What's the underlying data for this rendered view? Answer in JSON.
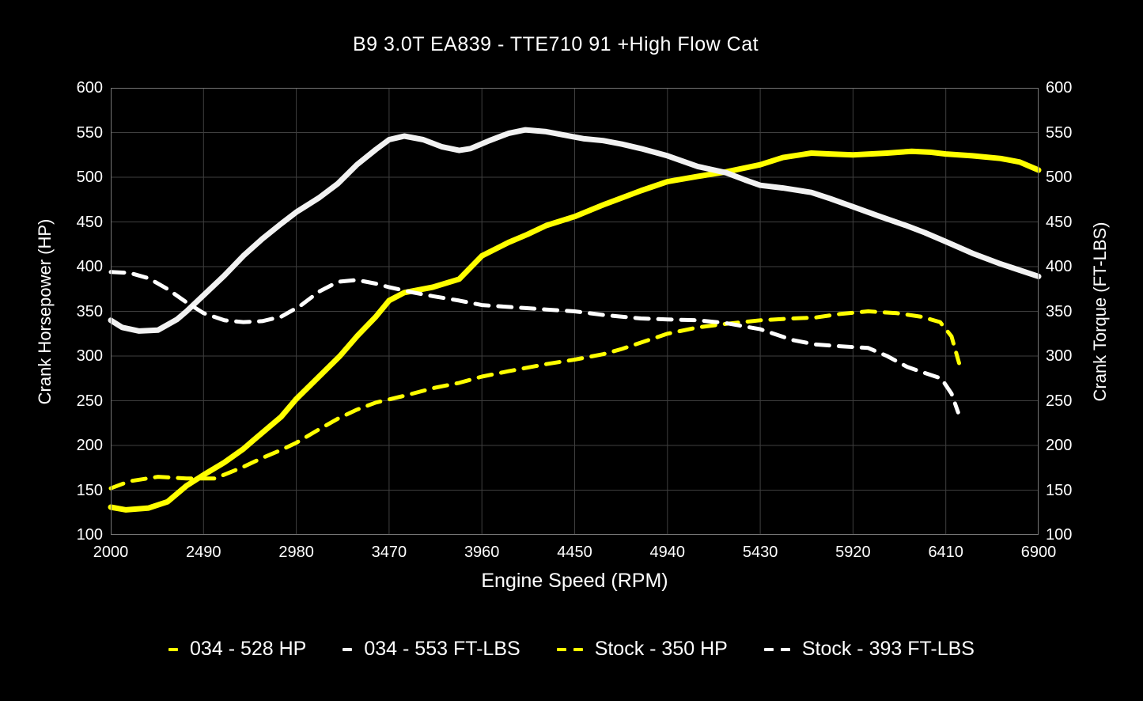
{
  "chart": {
    "title": "B9 3.0T EA839 - TTE710 91 +High Flow Cat",
    "x_axis_label": "Engine Speed (RPM)",
    "y_axis_left_label": "Crank Horsepower (HP)",
    "y_axis_right_label": "Crank Torque (FT-LBS)"
  },
  "chart_data": {
    "type": "line",
    "title": "B9 3.0T EA839 - TTE710 91 +High Flow Cat",
    "xlabel": "Engine Speed (RPM)",
    "ylabel_left": "Crank Horsepower (HP)",
    "ylabel_right": "Crank Torque (FT-LBS)",
    "xlim": [
      2000,
      6900
    ],
    "ylim": [
      100,
      600
    ],
    "x_ticks": [
      2000,
      2490,
      2980,
      3470,
      3960,
      4450,
      4940,
      5430,
      5920,
      6410,
      6900
    ],
    "y_ticks": [
      100,
      150,
      200,
      250,
      300,
      350,
      400,
      450,
      500,
      550,
      600
    ],
    "grid": true,
    "legend_position": "bottom",
    "colors": {
      "background": "#000000",
      "grid": "#3f3f3f",
      "spine": "#757575",
      "text": "#ffffff",
      "accent_yellow": "#ffff00",
      "accent_white": "#ffffff"
    },
    "series": [
      {
        "name": "034 - 528 HP",
        "key": "034-hp",
        "color": "#ffff00",
        "style": "solid",
        "width": 7,
        "points": [
          [
            2000,
            131
          ],
          [
            2080,
            128
          ],
          [
            2200,
            130
          ],
          [
            2300,
            137
          ],
          [
            2400,
            155
          ],
          [
            2490,
            167
          ],
          [
            2600,
            181
          ],
          [
            2700,
            196
          ],
          [
            2760,
            207
          ],
          [
            2900,
            232
          ],
          [
            2980,
            252
          ],
          [
            3100,
            277
          ],
          [
            3210,
            300
          ],
          [
            3300,
            322
          ],
          [
            3400,
            344
          ],
          [
            3470,
            362
          ],
          [
            3550,
            371
          ],
          [
            3700,
            377
          ],
          [
            3840,
            386
          ],
          [
            3960,
            412
          ],
          [
            4100,
            427
          ],
          [
            4200,
            436
          ],
          [
            4300,
            446
          ],
          [
            4450,
            456
          ],
          [
            4600,
            469
          ],
          [
            4800,
            485
          ],
          [
            4940,
            495
          ],
          [
            5100,
            501
          ],
          [
            5250,
            506
          ],
          [
            5430,
            514
          ],
          [
            5550,
            522
          ],
          [
            5700,
            527
          ],
          [
            5800,
            526
          ],
          [
            5920,
            525
          ],
          [
            6100,
            527
          ],
          [
            6230,
            529
          ],
          [
            6330,
            528
          ],
          [
            6410,
            526
          ],
          [
            6550,
            524
          ],
          [
            6700,
            521
          ],
          [
            6800,
            517
          ],
          [
            6900,
            508
          ]
        ]
      },
      {
        "name": "034 - 553 FT-LBS",
        "key": "034-tq",
        "color": "#f2f2f2",
        "style": "solid",
        "width": 7,
        "points": [
          [
            2000,
            340
          ],
          [
            2060,
            332
          ],
          [
            2150,
            328
          ],
          [
            2250,
            329
          ],
          [
            2350,
            341
          ],
          [
            2400,
            350
          ],
          [
            2490,
            368
          ],
          [
            2600,
            390
          ],
          [
            2700,
            412
          ],
          [
            2800,
            431
          ],
          [
            2900,
            448
          ],
          [
            2980,
            461
          ],
          [
            3100,
            477
          ],
          [
            3200,
            493
          ],
          [
            3300,
            514
          ],
          [
            3400,
            531
          ],
          [
            3470,
            542
          ],
          [
            3550,
            546
          ],
          [
            3650,
            542
          ],
          [
            3750,
            534
          ],
          [
            3840,
            530
          ],
          [
            3900,
            532
          ],
          [
            4000,
            541
          ],
          [
            4100,
            549
          ],
          [
            4190,
            553
          ],
          [
            4300,
            551
          ],
          [
            4400,
            547
          ],
          [
            4500,
            543
          ],
          [
            4600,
            541
          ],
          [
            4700,
            537
          ],
          [
            4800,
            532
          ],
          [
            4940,
            524
          ],
          [
            5100,
            512
          ],
          [
            5250,
            505
          ],
          [
            5350,
            497
          ],
          [
            5430,
            491
          ],
          [
            5550,
            488
          ],
          [
            5700,
            483
          ],
          [
            5800,
            476
          ],
          [
            5920,
            467
          ],
          [
            6050,
            457
          ],
          [
            6200,
            446
          ],
          [
            6300,
            438
          ],
          [
            6410,
            428
          ],
          [
            6550,
            415
          ],
          [
            6700,
            403
          ],
          [
            6800,
            396
          ],
          [
            6900,
            389
          ]
        ]
      },
      {
        "name": "Stock - 350 HP",
        "key": "stock-hp",
        "color": "#ffff00",
        "style": "dashed",
        "width": 5,
        "points": [
          [
            2000,
            152
          ],
          [
            2100,
            160
          ],
          [
            2250,
            165
          ],
          [
            2400,
            163
          ],
          [
            2550,
            163
          ],
          [
            2700,
            176
          ],
          [
            2800,
            186
          ],
          [
            2900,
            195
          ],
          [
            2980,
            203
          ],
          [
            3100,
            218
          ],
          [
            3200,
            230
          ],
          [
            3300,
            240
          ],
          [
            3400,
            248
          ],
          [
            3560,
            256
          ],
          [
            3700,
            264
          ],
          [
            3840,
            270
          ],
          [
            3960,
            277
          ],
          [
            4100,
            283
          ],
          [
            4300,
            291
          ],
          [
            4450,
            296
          ],
          [
            4600,
            302
          ],
          [
            4700,
            308
          ],
          [
            4800,
            315
          ],
          [
            4940,
            325
          ],
          [
            5100,
            332
          ],
          [
            5250,
            336
          ],
          [
            5430,
            340
          ],
          [
            5600,
            342
          ],
          [
            5720,
            343
          ],
          [
            5850,
            347
          ],
          [
            6000,
            350
          ],
          [
            6150,
            348
          ],
          [
            6280,
            344
          ],
          [
            6380,
            338
          ],
          [
            6440,
            322
          ],
          [
            6480,
            292
          ]
        ]
      },
      {
        "name": "Stock - 393 FT-LBS",
        "key": "stock-tq",
        "color": "#ffffff",
        "style": "dashed",
        "width": 5,
        "points": [
          [
            2000,
            394
          ],
          [
            2100,
            393
          ],
          [
            2200,
            387
          ],
          [
            2300,
            375
          ],
          [
            2400,
            360
          ],
          [
            2490,
            348
          ],
          [
            2600,
            340
          ],
          [
            2700,
            338
          ],
          [
            2800,
            339
          ],
          [
            2900,
            344
          ],
          [
            3000,
            356
          ],
          [
            3100,
            372
          ],
          [
            3200,
            383
          ],
          [
            3300,
            385
          ],
          [
            3400,
            381
          ],
          [
            3470,
            377
          ],
          [
            3600,
            371
          ],
          [
            3700,
            367
          ],
          [
            3840,
            362
          ],
          [
            3960,
            357
          ],
          [
            4100,
            355
          ],
          [
            4300,
            352
          ],
          [
            4450,
            350
          ],
          [
            4600,
            346
          ],
          [
            4800,
            342
          ],
          [
            4940,
            341
          ],
          [
            5100,
            340
          ],
          [
            5245,
            337
          ],
          [
            5350,
            333
          ],
          [
            5430,
            330
          ],
          [
            5600,
            318
          ],
          [
            5720,
            313
          ],
          [
            5850,
            311
          ],
          [
            6000,
            309
          ],
          [
            6100,
            300
          ],
          [
            6205,
            288
          ],
          [
            6300,
            281
          ],
          [
            6386,
            275
          ],
          [
            6440,
            258
          ],
          [
            6475,
            237
          ]
        ]
      }
    ]
  }
}
